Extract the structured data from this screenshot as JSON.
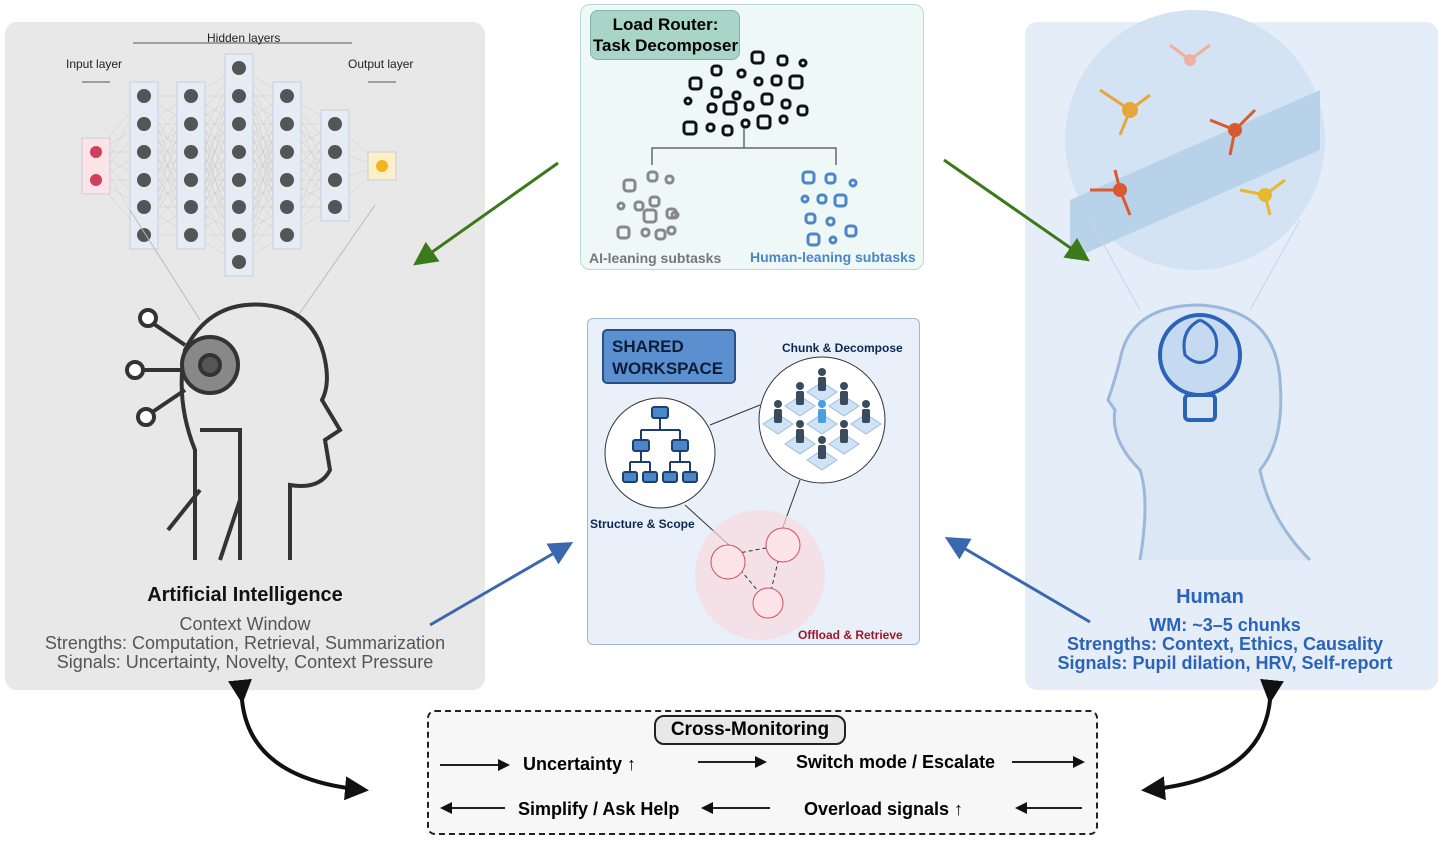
{
  "ai_panel": {
    "nn_labels": {
      "input": "Input layer",
      "hidden": "Hidden layers",
      "output": "Output layer"
    },
    "title": "Artificial Intelligence",
    "subtitle": "Context Window",
    "strengths": "Strengths: Computation, Retrieval, Summarization",
    "signals": "Signals: Uncertainty, Novelty, Context Pressure"
  },
  "router": {
    "title_line1": "Load Router:",
    "title_line2": "Task Decomposer",
    "ai_label": "AI-leaning subtasks",
    "human_label": "Human-leaning subtasks"
  },
  "workspace": {
    "title_line1": "SHARED",
    "title_line2": "WORKSPACE",
    "chunk": "Chunk & Decompose",
    "structure": "Structure & Scope",
    "offload": "Offload & Retrieve"
  },
  "human_panel": {
    "title": "Human",
    "wm": "WM: ~3–5 chunks",
    "strengths": "Strengths: Context, Ethics, Causality",
    "signals": "Signals: Pupil dilation, HRV, Self-report"
  },
  "monitoring": {
    "title": "Cross-Monitoring",
    "uncertainty": "Uncertainty ↑",
    "switch": "Switch mode / Escalate",
    "simplify": "Simplify / Ask Help",
    "overload": "Overload signals ↑"
  },
  "colors": {
    "green_arrow": "#3a7a1a",
    "blue_arrow": "#3a68b0",
    "human_text": "#2a63b8",
    "ai_text": "#555555"
  }
}
